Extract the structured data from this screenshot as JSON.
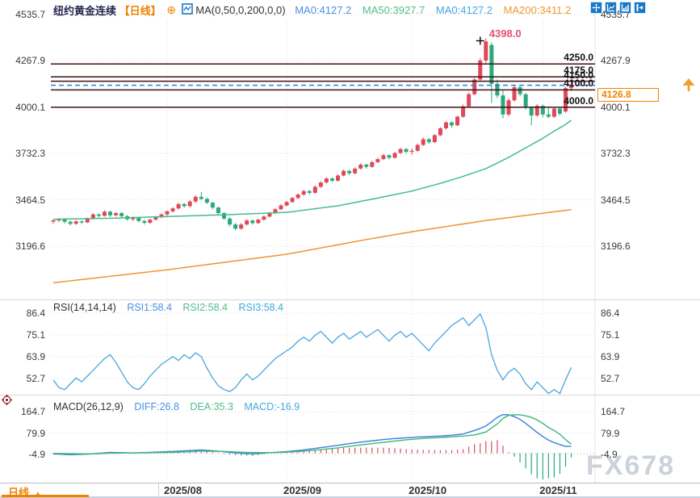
{
  "header": {
    "symbol": "纽约黄金连续",
    "period_tag": "【日线】",
    "add_icon": "⊕",
    "ma_settings": "MA(0,50,0,200,0,0)",
    "readouts": [
      {
        "label": "MA0:4127.2"
      },
      {
        "label": "MA50:3927.7"
      },
      {
        "label": "MA0:4127.2"
      },
      {
        "label": "MA200:3411.2"
      }
    ]
  },
  "toolbar": {
    "icons": [
      "pan-move",
      "scale-axis",
      "scale-axis-active",
      "exit-right"
    ]
  },
  "rsi_header": {
    "params": "RSI(14,14,14)",
    "readouts": [
      {
        "label": "RSI1:58.4"
      },
      {
        "label": "RSI2:58.4"
      },
      {
        "label": "RSI3:58.4"
      }
    ]
  },
  "macd_header": {
    "params": "MACD(26,12,9)",
    "readouts": [
      {
        "label": "DIFF:26.8"
      },
      {
        "label": "DEA:35.3"
      },
      {
        "label": "MACD:-16.9"
      }
    ]
  },
  "bottom_bar": {
    "tab": "日线",
    "tab_arrow": "▲",
    "months": [
      "2025/08",
      "2025/09",
      "2025/10",
      "2025/11"
    ]
  },
  "watermark": "FX678",
  "colors": {
    "accent_orange": "#f08200",
    "title_navy": "#26264f",
    "toolbar_blue": "#1878c8",
    "grid": "#dadada",
    "level_line": "#401313",
    "last_price_line": "#1f7fe8"
  },
  "chart_data": {
    "type": "candlestick",
    "symbol": "纽约黄金连续",
    "period": "日线",
    "x_axis": {
      "month_labels": [
        "2025/08",
        "2025/09",
        "2025/10",
        "2025/11"
      ],
      "month_start_indices": [
        20,
        41,
        63,
        86
      ]
    },
    "main_panel": {
      "y_ticks": [
        4535.7,
        4267.9,
        4000.1,
        3732.3,
        3464.5,
        3196.6
      ],
      "level_lines": [
        4250.0,
        4175.0,
        4150.0,
        4100.0,
        4000.0
      ],
      "last_price": 4126.8,
      "high_marker": {
        "index": 76,
        "price": 4398.0,
        "label": "4398.0"
      },
      "up_color": "#e0485a",
      "down_color": "#2aa97d",
      "ma50_color": "#46bd87",
      "ma200_color": "#ef9330",
      "candles": [
        [
          3338,
          3352,
          3326,
          3345
        ],
        [
          3345,
          3360,
          3336,
          3352
        ],
        [
          3352,
          3358,
          3328,
          3338
        ],
        [
          3338,
          3344,
          3316,
          3326
        ],
        [
          3326,
          3348,
          3320,
          3340
        ],
        [
          3340,
          3346,
          3324,
          3334
        ],
        [
          3334,
          3362,
          3330,
          3356
        ],
        [
          3356,
          3388,
          3350,
          3380
        ],
        [
          3380,
          3386,
          3362,
          3372
        ],
        [
          3372,
          3404,
          3368,
          3396
        ],
        [
          3396,
          3402,
          3366,
          3375
        ],
        [
          3375,
          3394,
          3368,
          3388
        ],
        [
          3388,
          3394,
          3362,
          3370
        ],
        [
          3370,
          3376,
          3344,
          3352
        ],
        [
          3352,
          3368,
          3342,
          3360
        ],
        [
          3360,
          3366,
          3334,
          3342
        ],
        [
          3342,
          3350,
          3322,
          3332
        ],
        [
          3332,
          3356,
          3326,
          3350
        ],
        [
          3350,
          3372,
          3344,
          3366
        ],
        [
          3366,
          3386,
          3358,
          3380
        ],
        [
          3380,
          3404,
          3372,
          3398
        ],
        [
          3398,
          3422,
          3390,
          3415
        ],
        [
          3415,
          3448,
          3408,
          3440
        ],
        [
          3440,
          3446,
          3418,
          3428
        ],
        [
          3428,
          3462,
          3420,
          3455
        ],
        [
          3455,
          3492,
          3448,
          3482
        ],
        [
          3482,
          3510,
          3464,
          3470
        ],
        [
          3470,
          3478,
          3440,
          3448
        ],
        [
          3448,
          3454,
          3410,
          3420
        ],
        [
          3420,
          3426,
          3380,
          3388
        ],
        [
          3388,
          3394,
          3348,
          3356
        ],
        [
          3356,
          3364,
          3310,
          3322
        ],
        [
          3322,
          3330,
          3288,
          3298
        ],
        [
          3298,
          3330,
          3292,
          3322
        ],
        [
          3322,
          3352,
          3316,
          3345
        ],
        [
          3345,
          3350,
          3322,
          3330
        ],
        [
          3330,
          3356,
          3325,
          3350
        ],
        [
          3350,
          3375,
          3344,
          3368
        ],
        [
          3368,
          3395,
          3362,
          3388
        ],
        [
          3388,
          3418,
          3382,
          3410
        ],
        [
          3410,
          3440,
          3405,
          3432
        ],
        [
          3432,
          3458,
          3426,
          3452
        ],
        [
          3452,
          3482,
          3446,
          3475
        ],
        [
          3475,
          3502,
          3468,
          3495
        ],
        [
          3495,
          3522,
          3488,
          3515
        ],
        [
          3515,
          3521,
          3494,
          3505
        ],
        [
          3505,
          3548,
          3500,
          3540
        ],
        [
          3540,
          3572,
          3534,
          3565
        ],
        [
          3565,
          3596,
          3558,
          3588
        ],
        [
          3588,
          3594,
          3566,
          3575
        ],
        [
          3575,
          3612,
          3570,
          3605
        ],
        [
          3605,
          3640,
          3600,
          3632
        ],
        [
          3632,
          3638,
          3608,
          3618
        ],
        [
          3618,
          3652,
          3612,
          3645
        ],
        [
          3645,
          3676,
          3640,
          3668
        ],
        [
          3668,
          3674,
          3645,
          3655
        ],
        [
          3655,
          3690,
          3650,
          3682
        ],
        [
          3682,
          3708,
          3676,
          3700
        ],
        [
          3700,
          3730,
          3694,
          3722
        ],
        [
          3722,
          3728,
          3698,
          3708
        ],
        [
          3708,
          3742,
          3702,
          3735
        ],
        [
          3735,
          3765,
          3730,
          3758
        ],
        [
          3758,
          3764,
          3732,
          3742
        ],
        [
          3742,
          3762,
          3726,
          3748
        ],
        [
          3748,
          3790,
          3742,
          3782
        ],
        [
          3782,
          3825,
          3776,
          3815
        ],
        [
          3815,
          3822,
          3788,
          3798
        ],
        [
          3798,
          3845,
          3792,
          3838
        ],
        [
          3838,
          3885,
          3832,
          3878
        ],
        [
          3878,
          3920,
          3870,
          3912
        ],
        [
          3912,
          3918,
          3882,
          3895
        ],
        [
          3895,
          3952,
          3890,
          3945
        ],
        [
          3945,
          4015,
          3938,
          4005
        ],
        [
          4005,
          4085,
          3998,
          4075
        ],
        [
          4075,
          4170,
          4068,
          4160
        ],
        [
          4160,
          4285,
          4150,
          4270
        ],
        [
          4270,
          4398,
          4255,
          4380
        ],
        [
          4360,
          4375,
          4025,
          4135
        ],
        [
          4135,
          4160,
          4052,
          4068
        ],
        [
          4068,
          4098,
          3935,
          3958
        ],
        [
          3958,
          4052,
          3948,
          4040
        ],
        [
          4040,
          4125,
          4032,
          4115
        ],
        [
          4115,
          4122,
          4062,
          4075
        ],
        [
          4075,
          4082,
          3985,
          3998
        ],
        [
          3998,
          4005,
          3895,
          3952
        ],
        [
          3952,
          4018,
          3945,
          4008
        ],
        [
          4008,
          4015,
          3942,
          3958
        ],
        [
          3958,
          3998,
          3936,
          3945
        ],
        [
          3945,
          4002,
          3938,
          3992
        ],
        [
          3992,
          3999,
          3952,
          3962
        ],
        [
          3975,
          4118,
          3968,
          4110
        ],
        [
          4110,
          4162,
          4092,
          4126.8
        ]
      ],
      "ma50": [
        [
          0,
          3352
        ],
        [
          10,
          3358
        ],
        [
          20,
          3368
        ],
        [
          30,
          3378
        ],
        [
          41,
          3392
        ],
        [
          50,
          3430
        ],
        [
          57,
          3475
        ],
        [
          63,
          3515
        ],
        [
          68,
          3560
        ],
        [
          72,
          3600
        ],
        [
          76,
          3645
        ],
        [
          80,
          3710
        ],
        [
          83,
          3765
        ],
        [
          86,
          3820
        ],
        [
          88,
          3862
        ],
        [
          90,
          3900
        ],
        [
          91,
          3925
        ]
      ],
      "ma200": [
        [
          0,
          2985
        ],
        [
          20,
          3060
        ],
        [
          41,
          3150
        ],
        [
          55,
          3235
        ],
        [
          63,
          3280
        ],
        [
          76,
          3345
        ],
        [
          91,
          3408
        ]
      ]
    },
    "rsi_panel": {
      "y_ticks": [
        86.4,
        75.1,
        63.9,
        52.7
      ],
      "line_color": "#4aa6dd",
      "values": [
        52,
        48,
        47,
        50,
        53,
        51,
        54,
        57,
        60,
        63,
        65,
        61,
        56,
        51,
        48,
        47,
        50,
        54,
        57,
        60,
        62,
        64,
        62,
        65,
        63,
        66,
        64,
        58,
        53,
        49,
        47,
        46,
        48,
        52,
        55,
        52,
        54,
        57,
        60,
        63,
        65,
        67,
        69,
        72,
        74,
        72,
        75,
        77,
        74,
        71,
        74,
        76,
        73,
        75,
        77,
        74,
        76,
        78,
        75,
        72,
        75,
        77,
        74,
        76,
        73,
        70,
        67,
        71,
        74,
        77,
        80,
        82,
        84,
        80,
        83,
        86,
        79,
        65,
        57,
        52,
        56,
        58,
        55,
        50,
        47,
        51,
        48,
        45,
        47,
        45,
        52,
        58.4
      ]
    },
    "macd_panel": {
      "y_ticks": [
        164.7,
        79.9,
        -4.9
      ],
      "diff_color": "#3b7fe0",
      "dea_color": "#3cb878",
      "hist_up_color": "#d94f5c",
      "hist_down_color": "#2aa97d",
      "diff": [
        [
          0,
          -3
        ],
        [
          3,
          -6
        ],
        [
          6,
          -4
        ],
        [
          10,
          3
        ],
        [
          14,
          1
        ],
        [
          18,
          4
        ],
        [
          22,
          8
        ],
        [
          26,
          13
        ],
        [
          29,
          8
        ],
        [
          32,
          1
        ],
        [
          35,
          -3
        ],
        [
          38,
          2
        ],
        [
          41,
          6
        ],
        [
          44,
          13
        ],
        [
          47,
          22
        ],
        [
          50,
          31
        ],
        [
          53,
          41
        ],
        [
          56,
          49
        ],
        [
          58,
          54
        ],
        [
          60,
          58
        ],
        [
          62,
          61
        ],
        [
          64,
          64
        ],
        [
          66,
          66
        ],
        [
          68,
          68
        ],
        [
          70,
          71
        ],
        [
          72,
          76
        ],
        [
          74,
          90
        ],
        [
          75,
          98
        ],
        [
          76,
          108
        ],
        [
          77,
          124
        ],
        [
          78,
          142
        ],
        [
          79,
          153
        ],
        [
          80,
          152
        ],
        [
          81,
          145
        ],
        [
          82,
          134
        ],
        [
          83,
          118
        ],
        [
          84,
          100
        ],
        [
          85,
          82
        ],
        [
          86,
          66
        ],
        [
          87,
          52
        ],
        [
          88,
          42
        ],
        [
          89,
          34
        ],
        [
          90,
          27
        ],
        [
          91,
          26.8
        ]
      ],
      "dea": [
        [
          0,
          -1
        ],
        [
          6,
          -3
        ],
        [
          10,
          0
        ],
        [
          14,
          1
        ],
        [
          18,
          2
        ],
        [
          22,
          4
        ],
        [
          26,
          8
        ],
        [
          30,
          7
        ],
        [
          34,
          3
        ],
        [
          38,
          2
        ],
        [
          41,
          4
        ],
        [
          44,
          8
        ],
        [
          47,
          14
        ],
        [
          50,
          21
        ],
        [
          53,
          30
        ],
        [
          56,
          38
        ],
        [
          58,
          43
        ],
        [
          60,
          48
        ],
        [
          62,
          53
        ],
        [
          64,
          57
        ],
        [
          66,
          60
        ],
        [
          68,
          62
        ],
        [
          70,
          65
        ],
        [
          72,
          68
        ],
        [
          74,
          72
        ],
        [
          76,
          84
        ],
        [
          77,
          100
        ],
        [
          78,
          116
        ],
        [
          79,
          138
        ],
        [
          80,
          150
        ],
        [
          81,
          152
        ],
        [
          82,
          152
        ],
        [
          83,
          148
        ],
        [
          84,
          142
        ],
        [
          85,
          132
        ],
        [
          86,
          118
        ],
        [
          87,
          102
        ],
        [
          88,
          90
        ],
        [
          89,
          75
        ],
        [
          90,
          54
        ],
        [
          91,
          35.3
        ]
      ]
    }
  }
}
